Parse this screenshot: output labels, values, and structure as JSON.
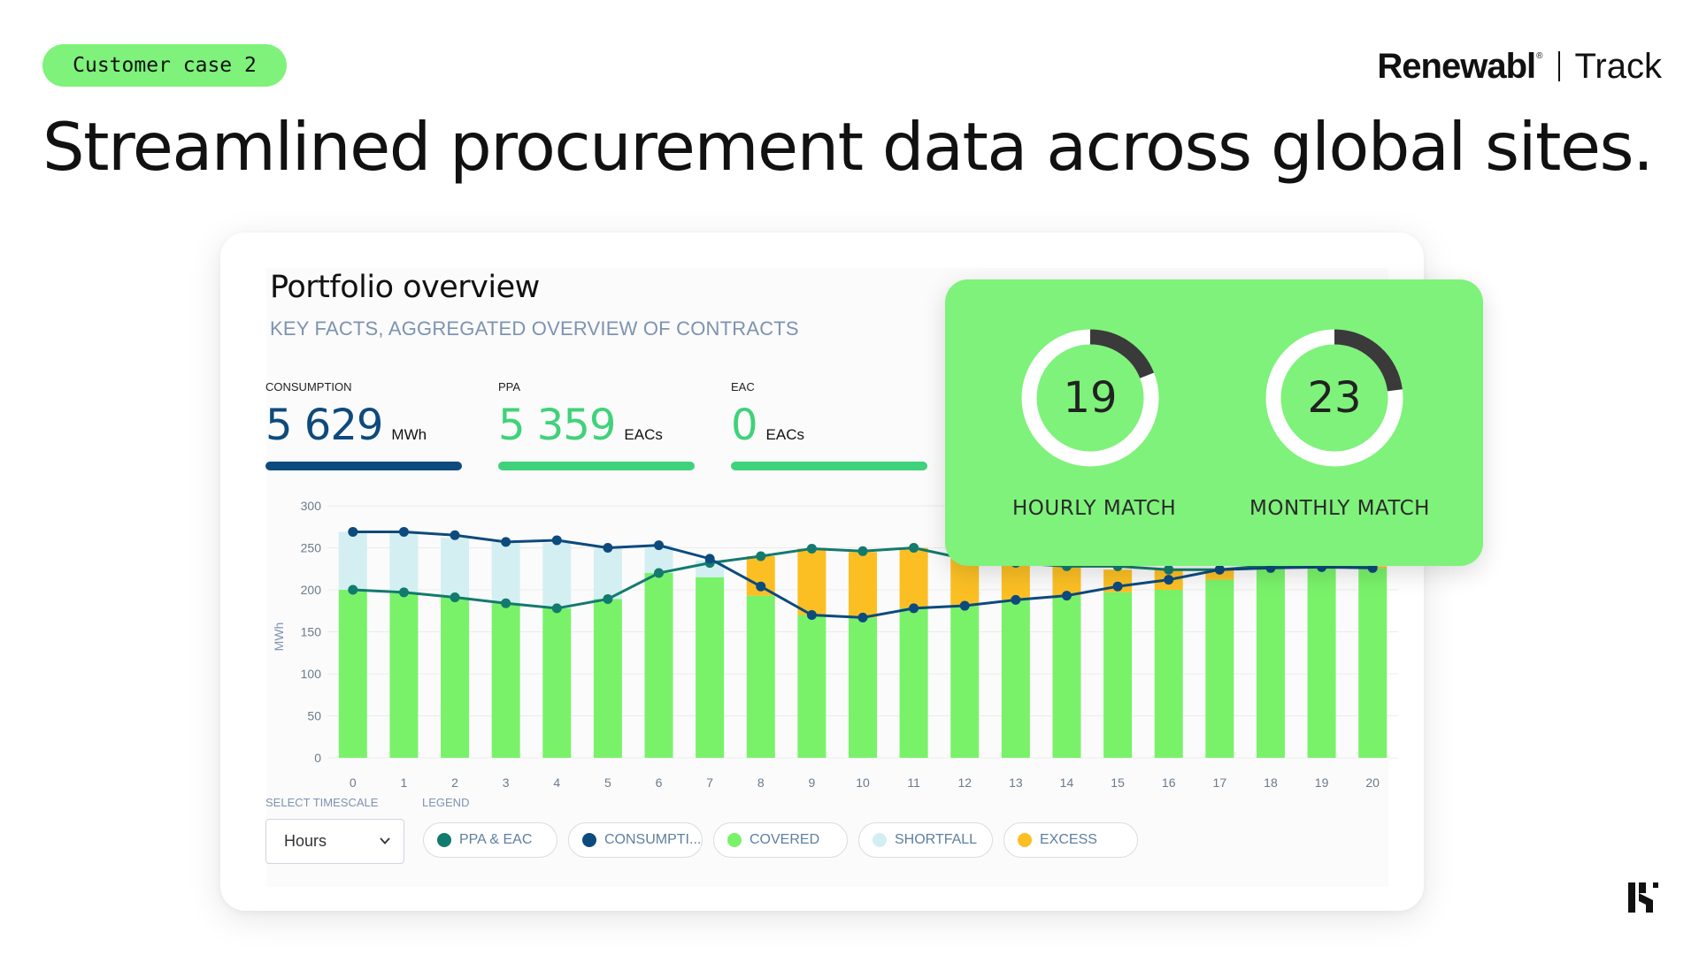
{
  "header": {
    "tag": "Customer case 2",
    "brand_name": "Renewabl",
    "brand_registered": "®",
    "brand_product": "Track",
    "headline": "Streamlined procurement data across global sites."
  },
  "overview": {
    "title": "Portfolio overview",
    "subtitle": "KEY FACTS, AGGREGATED OVERVIEW OF CONTRACTS",
    "stats": [
      {
        "label": "CONSUMPTION",
        "value": "5 629",
        "unit": "MWh",
        "color": "#0d4a7d"
      },
      {
        "label": "PPA",
        "value": "5 359",
        "unit": "EACs",
        "color": "#3fd27a"
      },
      {
        "label": "EAC",
        "value": "0",
        "unit": "EACs",
        "color": "#3fd27a"
      }
    ]
  },
  "controls": {
    "timescale_label": "SELECT TIMESCALE",
    "timescale_value": "Hours",
    "legend_label": "LEGEND",
    "legend": [
      {
        "label": "PPA & EAC",
        "color": "#137a6e"
      },
      {
        "label": "CONSUMPTI...",
        "color": "#0d4a7d"
      },
      {
        "label": "COVERED",
        "color": "#79f26a"
      },
      {
        "label": "SHORTFALL",
        "color": "#d3eff1"
      },
      {
        "label": "EXCESS",
        "color": "#fbbf24"
      }
    ]
  },
  "match": {
    "hourly": {
      "value": "19",
      "label": "HOURLY MATCH",
      "percent": 19
    },
    "monthly": {
      "value": "23",
      "label": "MONTHLY MATCH",
      "percent": 23
    }
  },
  "chart_data": {
    "type": "bar",
    "ylabel": "MWh",
    "xlabel": "",
    "ylim": [
      0,
      300
    ],
    "yticks": [
      0,
      50,
      100,
      150,
      200,
      250,
      300
    ],
    "categories": [
      "0",
      "1",
      "2",
      "3",
      "4",
      "5",
      "6",
      "7",
      "8",
      "9",
      "10",
      "11",
      "12",
      "13",
      "14",
      "15",
      "16",
      "17",
      "18",
      "19",
      "20"
    ],
    "series": [
      {
        "name": "COVERED",
        "values": [
          200,
          196,
          191,
          184,
          178,
          189,
          220,
          215,
          193,
          170,
          167,
          178,
          181,
          188,
          193,
          197,
          200,
          212,
          226,
          227,
          226
        ]
      },
      {
        "name": "SHORTFALL",
        "values": [
          69,
          73,
          71,
          73,
          78,
          61,
          33,
          20,
          0,
          0,
          0,
          0,
          0,
          0,
          0,
          0,
          0,
          0,
          0,
          0,
          0
        ]
      },
      {
        "name": "EXCESS",
        "values": [
          0,
          0,
          0,
          0,
          0,
          0,
          0,
          0,
          47,
          79,
          78,
          72,
          56,
          44,
          35,
          27,
          24,
          12,
          3,
          2,
          2
        ]
      },
      {
        "name": "PPA & EAC",
        "values": [
          200,
          197,
          191,
          184,
          178,
          189,
          220,
          232,
          240,
          249,
          246,
          250,
          237,
          232,
          228,
          228,
          224,
          224,
          229,
          229,
          228
        ]
      },
      {
        "name": "CONSUMPTION",
        "values": [
          269,
          269,
          265,
          257,
          259,
          250,
          253,
          237,
          204,
          170,
          167,
          178,
          181,
          188,
          193,
          204,
          212,
          224,
          226,
          227,
          226
        ]
      }
    ],
    "colors": {
      "covered": "#79f26a",
      "shortfall": "#d3eff1",
      "excess": "#fbbf24",
      "ppa": "#137a6e",
      "consumption": "#0d4a7d"
    },
    "grid": true
  }
}
